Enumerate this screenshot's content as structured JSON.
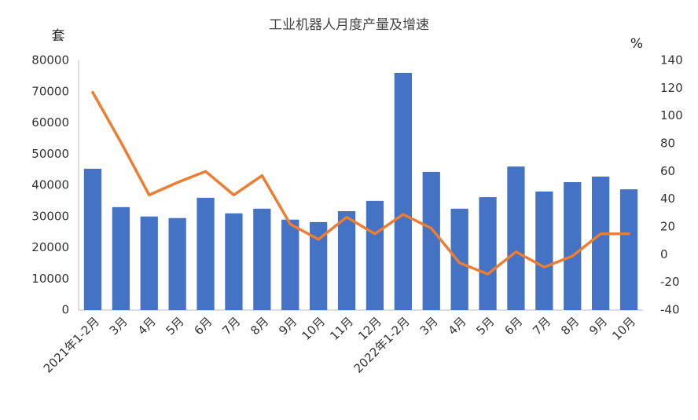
{
  "chart_data": {
    "type": "bar-line",
    "title": "工业机器人月度产量及增速",
    "y_label": "套",
    "y2_label": "%",
    "categories": [
      "2021年1-2月",
      "3月",
      "4月",
      "5月",
      "6月",
      "7月",
      "8月",
      "9月",
      "10月",
      "11月",
      "12月",
      "2022年1-2月",
      "3月",
      "4月",
      "5月",
      "6月",
      "7月",
      "8月",
      "9月",
      "10月"
    ],
    "series": [
      {
        "type": "bar",
        "color": "#4472c4",
        "values": [
          45300,
          33000,
          30000,
          29500,
          36000,
          31000,
          32500,
          29000,
          28200,
          31700,
          35000,
          76000,
          44300,
          32500,
          36200,
          46000,
          38000,
          41000,
          42800,
          38700
        ]
      },
      {
        "type": "line",
        "axis": "y2",
        "color": "#ed7d31",
        "values": [
          117,
          81,
          43,
          52,
          60,
          43,
          57,
          22,
          11,
          27,
          15,
          29,
          19,
          -6,
          -14,
          2,
          -9,
          -1,
          15,
          15
        ]
      }
    ],
    "ylim": [
      0,
      80000
    ],
    "yticks": [
      0,
      10000,
      20000,
      30000,
      40000,
      50000,
      60000,
      70000,
      80000
    ],
    "y2lim": [
      -40,
      140
    ],
    "y2ticks": [
      -40,
      -20,
      0,
      20,
      40,
      60,
      80,
      100,
      120,
      140
    ],
    "grid": false
  }
}
